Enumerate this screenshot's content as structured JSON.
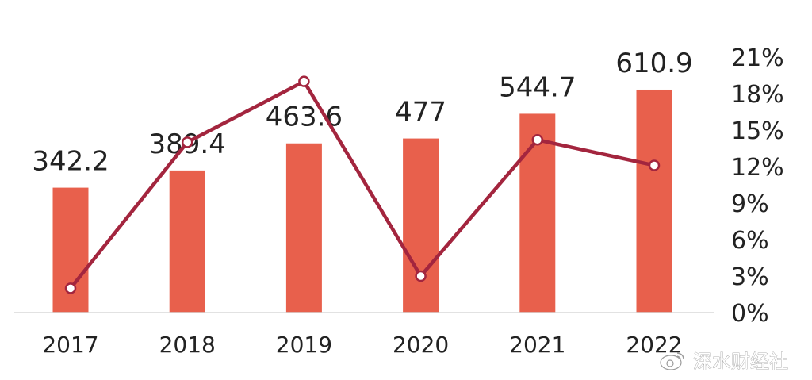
{
  "chart_data": {
    "type": "bar",
    "categories": [
      "2017",
      "2018",
      "2019",
      "2020",
      "2021",
      "2022"
    ],
    "series": [
      {
        "type": "bar",
        "axis": "left",
        "values": [
          342.2,
          389.4,
          463.6,
          477,
          544.7,
          610.9
        ],
        "data_labels": [
          "342.2",
          "389.4",
          "463.6",
          "477",
          "544.7",
          "610.9"
        ],
        "color": "#e8604c"
      },
      {
        "type": "line",
        "axis": "right",
        "values": [
          2.0,
          14.0,
          19.0,
          3.0,
          14.2,
          12.1
        ],
        "color": "#a3253e",
        "marker_fill": "#ffffff"
      }
    ],
    "left_axis": {
      "min": 0,
      "max": 700,
      "visible": false
    },
    "right_axis": {
      "min": 0,
      "max": 21,
      "ticks": [
        "0%",
        "3%",
        "6%",
        "9%",
        "12%",
        "15%",
        "18%",
        "21%"
      ]
    },
    "grid": false,
    "legend": "none",
    "xlabel": "",
    "ylabel": ""
  },
  "watermark": {
    "text": "深水财经社",
    "icon": "weibo-icon"
  }
}
